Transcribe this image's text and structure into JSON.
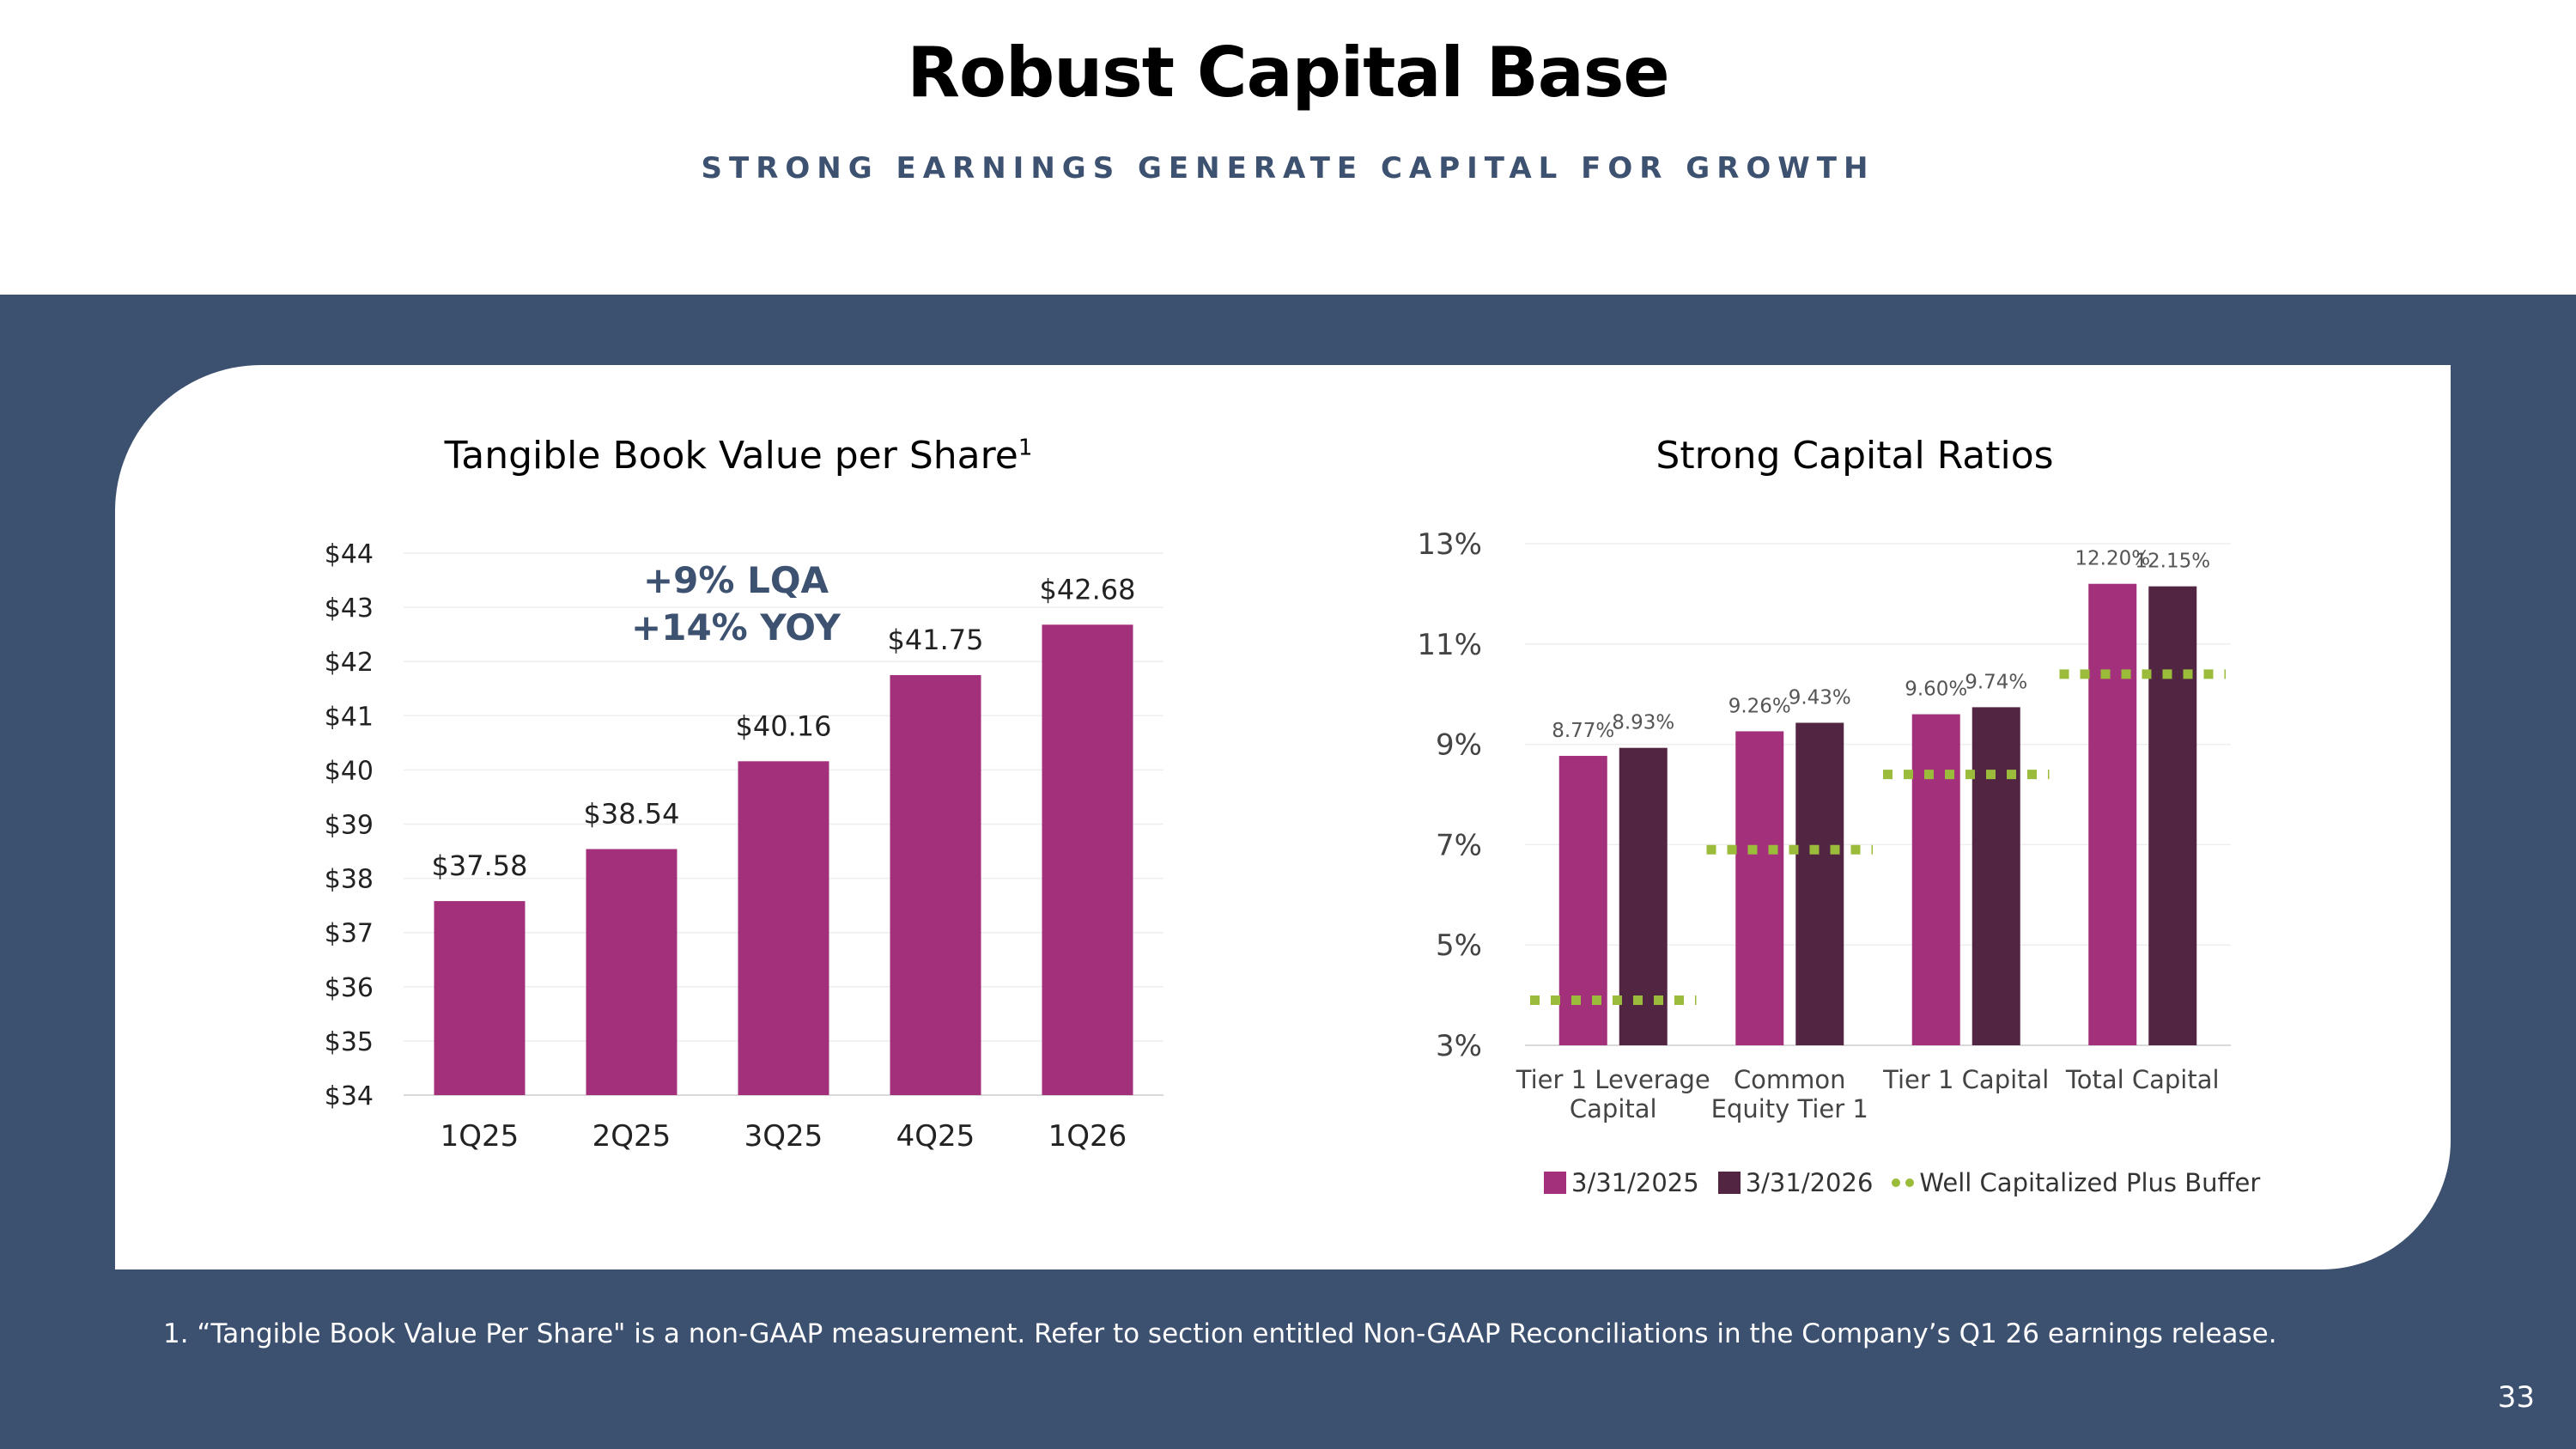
{
  "header": {
    "title": "Robust Capital Base",
    "subtitle": "STRONG EARNINGS GENERATE CAPITAL FOR GROWTH"
  },
  "colors": {
    "band": "#3c5070",
    "bar_2025": "#a2307a",
    "bar_2026": "#522643",
    "buffer": "#9bbb3b",
    "annotation": "#3d5170"
  },
  "footnote": "1. “Tangible Book Value Per Share\" is a non-GAAP measurement. Refer to section entitled Non-GAAP Reconciliations in the Company’s Q1 26 earnings release.",
  "page_number": "33",
  "chart_data": [
    {
      "type": "bar",
      "title": "Tangible Book Value per Share",
      "title_superscript": "1",
      "categories": [
        "1Q25",
        "2Q25",
        "3Q25",
        "4Q25",
        "1Q26"
      ],
      "values": [
        37.58,
        38.54,
        40.16,
        41.75,
        42.68
      ],
      "value_labels": [
        "$37.58",
        "$38.54",
        "$40.16",
        "$41.75",
        "$42.68"
      ],
      "ylim": [
        34,
        44
      ],
      "yticks": [
        "$34",
        "$35",
        "$36",
        "$37",
        "$38",
        "$39",
        "$40",
        "$41",
        "$42",
        "$43",
        "$44"
      ],
      "grid": true,
      "annotations": [
        "+9% LQA",
        "+14%  YOY"
      ]
    },
    {
      "type": "bar",
      "title": "Strong Capital Ratios",
      "categories": [
        [
          "Tier 1 Leverage",
          "Capital"
        ],
        [
          "Common",
          "Equity Tier 1"
        ],
        [
          "Tier 1 Capital"
        ],
        [
          "Total Capital"
        ]
      ],
      "ylim": [
        3,
        13
      ],
      "yticks": [
        "3%",
        "5%",
        "7%",
        "9%",
        "11%",
        "13%"
      ],
      "grid": true,
      "legend_position": "bottom",
      "series": [
        {
          "name": "3/31/2025",
          "values": [
            8.77,
            9.26,
            9.6,
            12.2
          ],
          "labels": [
            "8.77%",
            "9.26%",
            "9.60%",
            "12.20%"
          ]
        },
        {
          "name": "3/31/2026",
          "values": [
            8.93,
            9.43,
            9.74,
            12.15
          ],
          "labels": [
            "8.93%",
            "9.43%",
            "9.74%",
            "12.15%"
          ]
        }
      ],
      "buffer": {
        "name": "Well Capitalized Plus Buffer",
        "values": [
          3.9,
          6.9,
          8.4,
          10.4
        ]
      }
    }
  ]
}
